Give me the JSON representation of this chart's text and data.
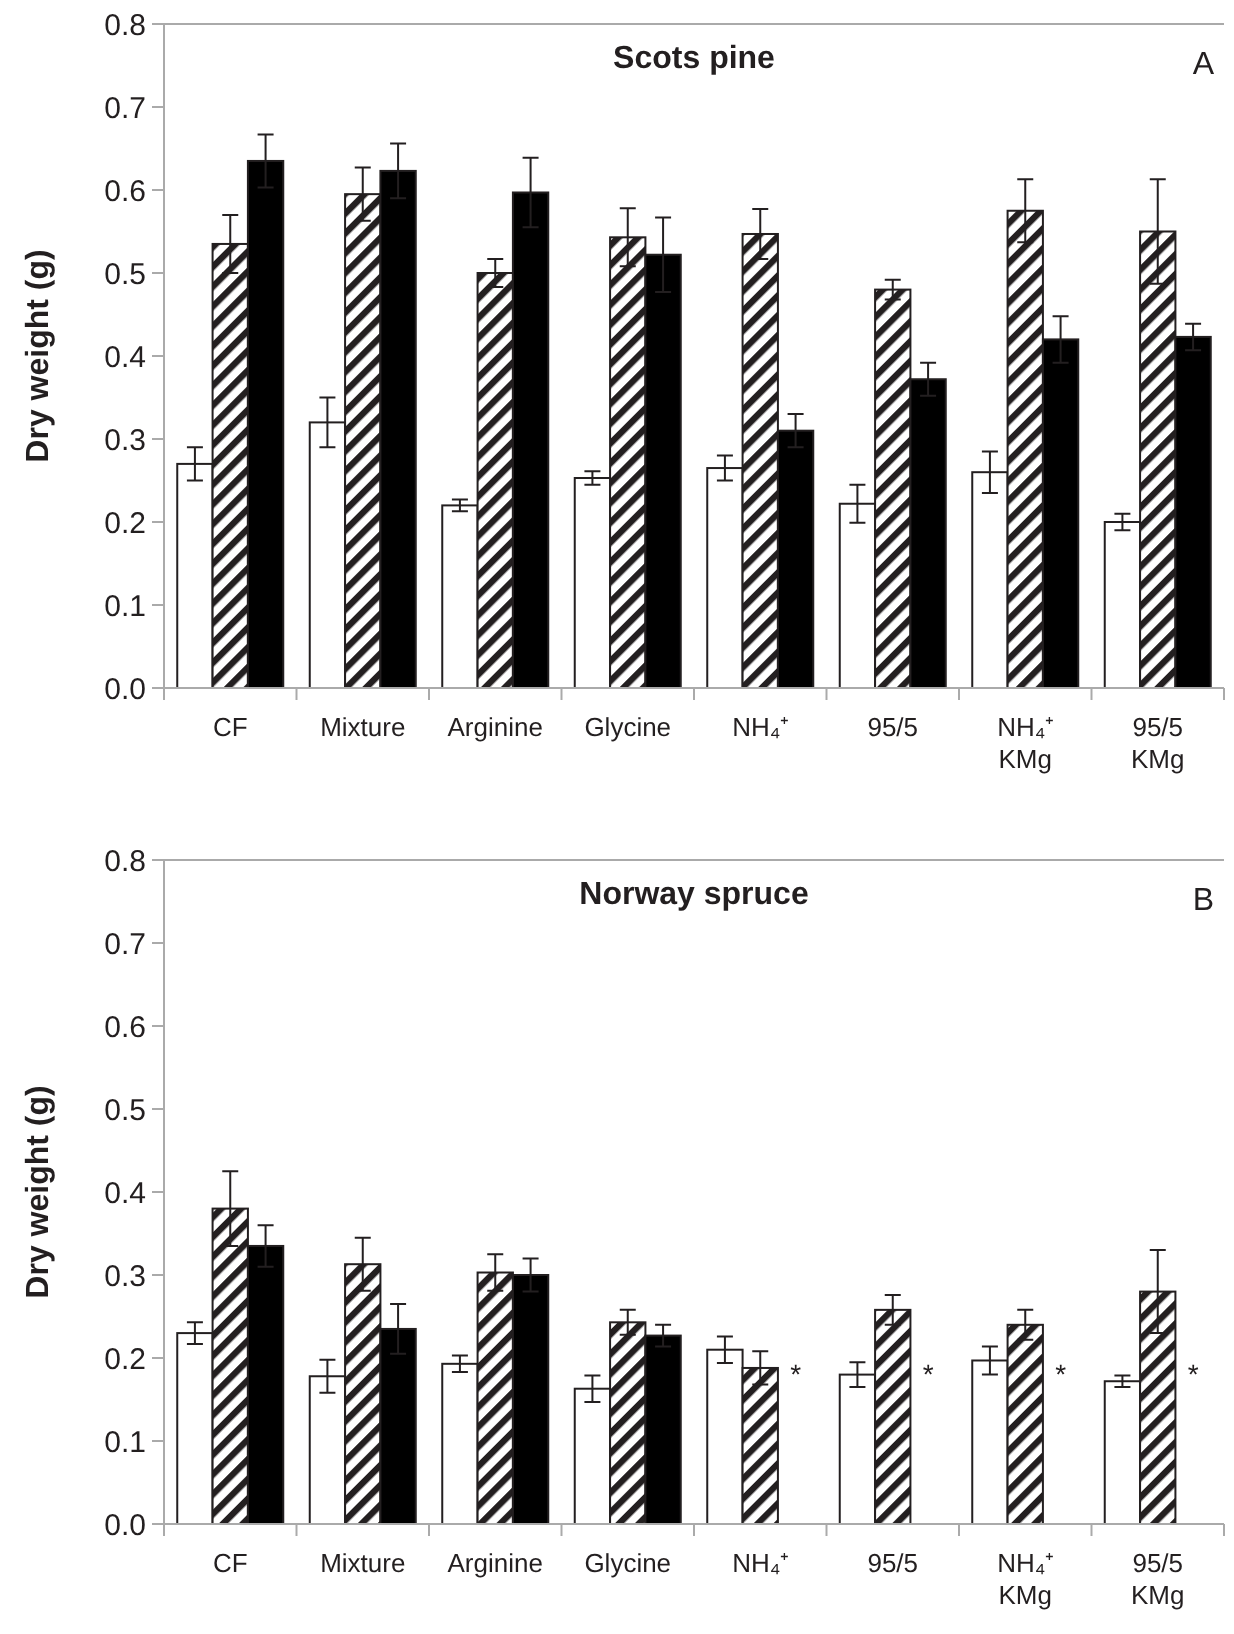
{
  "chart_data": [
    {
      "type": "bar",
      "title": "Scots pine",
      "ylabel": "Dry weight (g)",
      "annotations": [
        "A"
      ],
      "categories": [
        "CF",
        "Mixture",
        "Arginine",
        "Glycine",
        "NH₄⁺",
        "95/5",
        "NH₄⁺\nKMg",
        "95/5\nKMg"
      ],
      "series": [
        {
          "color": "#ffffff",
          "values": [
            0.27,
            0.32,
            0.22,
            0.253,
            0.265,
            0.222,
            0.26,
            0.2
          ],
          "errors": [
            0.02,
            0.03,
            0.007,
            0.008,
            0.015,
            0.023,
            0.025,
            0.01
          ]
        },
        {
          "color": "#231f20",
          "values": [
            0.535,
            0.595,
            0.5,
            0.543,
            0.547,
            0.48,
            0.575,
            0.55
          ],
          "errors": [
            0.035,
            0.032,
            0.017,
            0.035,
            0.03,
            0.012,
            0.038,
            0.063
          ]
        },
        {
          "color": "#000000",
          "values": [
            0.635,
            0.623,
            0.597,
            0.522,
            0.31,
            0.372,
            0.42,
            0.423
          ],
          "errors": [
            0.032,
            0.033,
            0.042,
            0.045,
            0.02,
            0.02,
            0.028,
            0.016
          ]
        }
      ],
      "ylim": [
        0,
        0.8
      ],
      "yticks": [
        {
          "value": 0,
          "label": "0.0"
        },
        0.1,
        0.2,
        0.3,
        0.4,
        0.5,
        0.6,
        0.7,
        0.8
      ],
      "grid": false,
      "legend": false
    },
    {
      "type": "bar",
      "title": "Norway spruce",
      "ylabel": "Dry weight (g)",
      "annotations": [
        "B",
        "*",
        "*",
        "*",
        "*"
      ],
      "categories": [
        "CF",
        "Mixture",
        "Arginine",
        "Glycine",
        "NH₄⁺",
        "95/5",
        "NH₄⁺\nKMg",
        "95/5\nKMg"
      ],
      "series": [
        {
          "color": "#ffffff",
          "values": [
            0.23,
            0.178,
            0.193,
            0.163,
            0.21,
            0.18,
            0.197,
            0.172
          ],
          "errors": [
            0.013,
            0.02,
            0.01,
            0.016,
            0.016,
            0.015,
            0.017,
            0.007
          ]
        },
        {
          "color": "#231f20",
          "values": [
            0.38,
            0.313,
            0.303,
            0.243,
            0.188,
            0.258,
            0.24,
            0.28
          ],
          "errors": [
            0.045,
            0.032,
            0.022,
            0.015,
            0.02,
            0.018,
            0.018,
            0.05
          ]
        },
        {
          "color": "#000000",
          "values": [
            0.335,
            0.235,
            0.3,
            0.227,
            null,
            null,
            null,
            null
          ],
          "errors": [
            0.025,
            0.03,
            0.02,
            0.013,
            null,
            null,
            null,
            null
          ]
        }
      ],
      "ylim": [
        0,
        0.8
      ],
      "yticks": [
        {
          "value": 0,
          "label": "0.0"
        },
        0.1,
        0.2,
        0.3,
        0.4,
        0.5,
        0.6,
        0.7,
        0.8
      ],
      "grid": false,
      "legend": false
    }
  ]
}
